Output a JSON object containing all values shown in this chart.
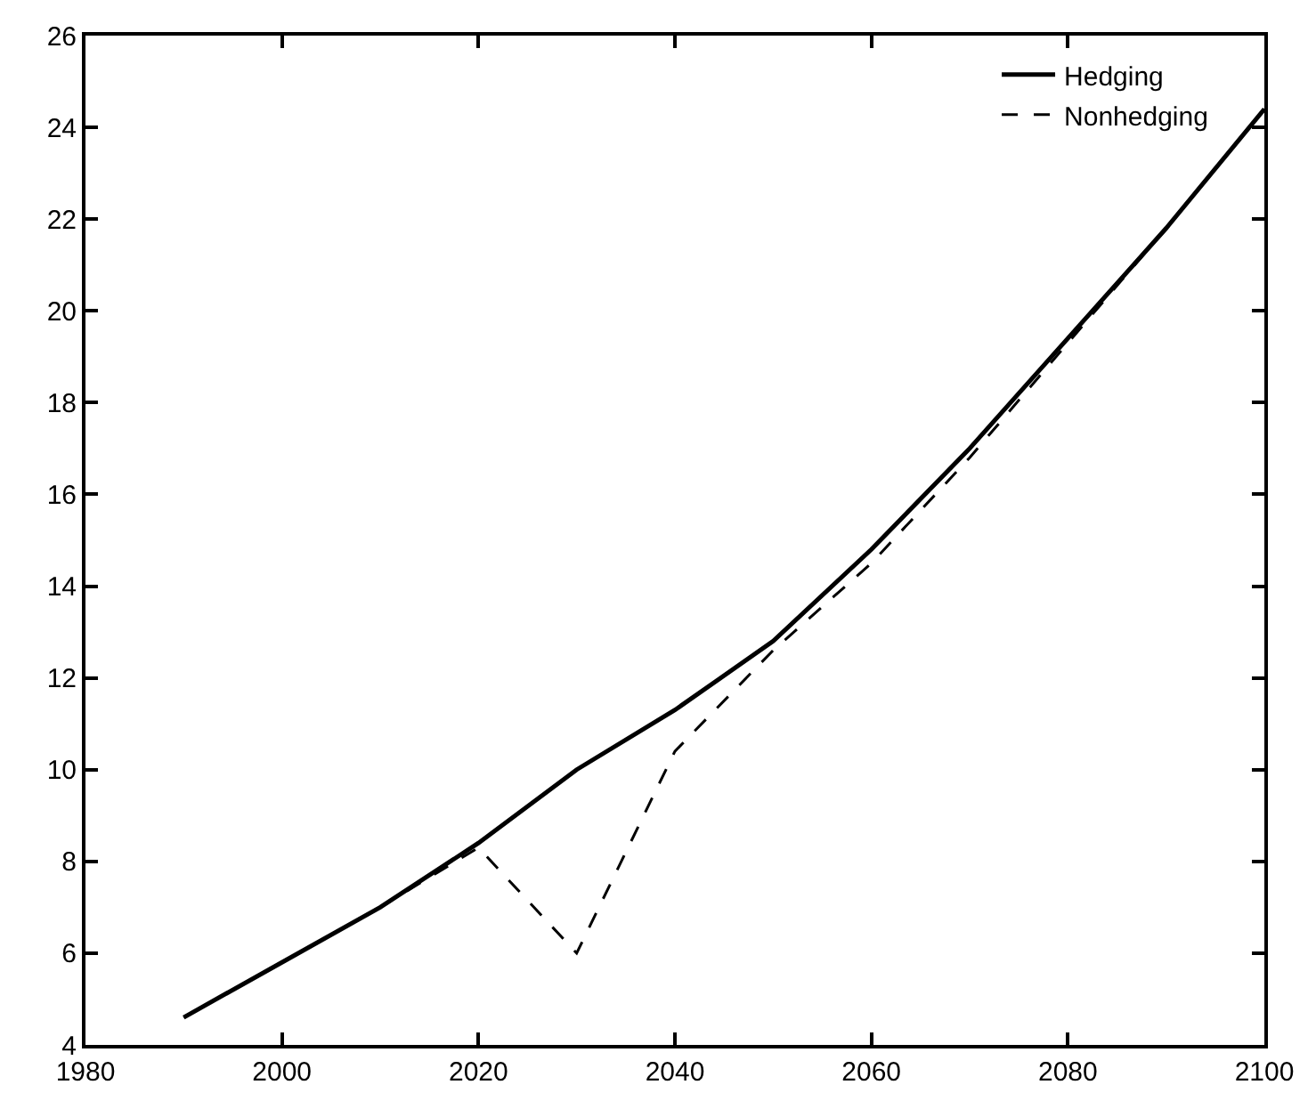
{
  "chart_data": {
    "type": "line",
    "x": [
      1990,
      2000,
      2010,
      2020,
      2030,
      2040,
      2050,
      2060,
      2070,
      2080,
      2090,
      2100
    ],
    "series": [
      {
        "name": "Hedging",
        "color": "#000000",
        "line_style": "solid",
        "values": [
          4.6,
          5.8,
          7.0,
          8.4,
          10.0,
          11.3,
          12.8,
          14.8,
          17.0,
          19.4,
          21.8,
          24.4
        ]
      },
      {
        "name": "Nonhedging",
        "color": "#000000",
        "line_style": "dashed",
        "values": [
          4.6,
          5.8,
          7.0,
          8.3,
          6.0,
          10.4,
          12.6,
          14.5,
          16.8,
          19.3,
          21.8,
          24.4
        ]
      }
    ],
    "xlim": [
      1980,
      2100
    ],
    "xticks": [
      1980,
      2000,
      2020,
      2040,
      2060,
      2080,
      2100
    ],
    "ylim": [
      4,
      26
    ],
    "yticks": [
      4,
      6,
      8,
      10,
      12,
      14,
      16,
      18,
      20,
      22,
      24,
      26
    ],
    "legend": "top right",
    "marker": "none"
  }
}
